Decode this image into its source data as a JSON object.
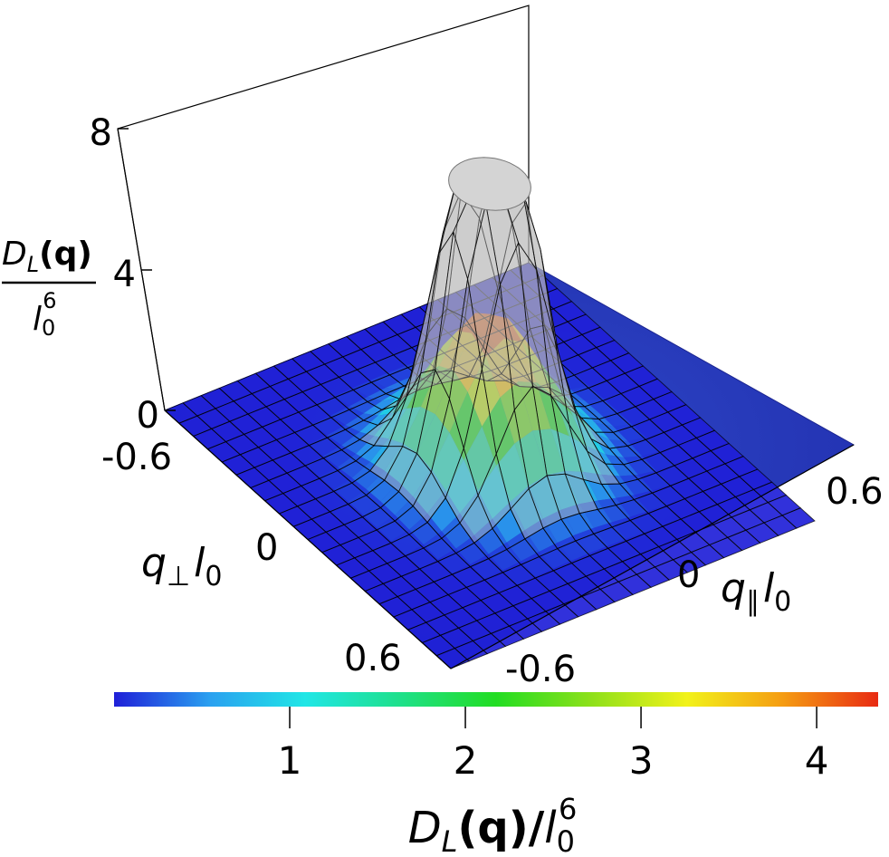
{
  "chart_data": {
    "type": "surface",
    "z_axis": {
      "label_numerator": "D",
      "label_sub": "L",
      "label_arg": "(q)",
      "label_denominator": "l",
      "label_den_sub": "0",
      "label_den_sup": "6",
      "ticks": [
        "0",
        "4",
        "8"
      ],
      "range": [
        0,
        8
      ]
    },
    "x_axis": {
      "symbol": "q",
      "sub": "∥",
      "factor": "l",
      "factor_sub": "0",
      "ticks": [
        "-0.6",
        "0",
        "0.6"
      ],
      "range": [
        -0.6,
        0.6
      ]
    },
    "y_axis": {
      "symbol": "q",
      "sub": "⊥",
      "factor": "l",
      "factor_sub": "0",
      "ticks": [
        "-0.6",
        "0",
        "0.6"
      ],
      "range": [
        -0.6,
        0.6
      ]
    },
    "colorbar": {
      "ticks": [
        "1",
        "2",
        "3",
        "4"
      ],
      "range": [
        0,
        4.35
      ],
      "colors": [
        "#1f1fd8",
        "#2aa0f0",
        "#20e6e6",
        "#1ee08a",
        "#22dd22",
        "#8ee01a",
        "#f2f21a",
        "#f59c12",
        "#e82a12"
      ],
      "label_main": "D",
      "label_sub": "L",
      "label_arg": "(q)/",
      "label_den": "l",
      "label_den_sub": "0",
      "label_den_sup": "6"
    },
    "surfaces": [
      {
        "role": "colored",
        "peak": 4.3,
        "width": 0.15
      },
      {
        "role": "gray wireframe",
        "peak": 8,
        "width": 0.11,
        "cap": 8
      }
    ]
  }
}
